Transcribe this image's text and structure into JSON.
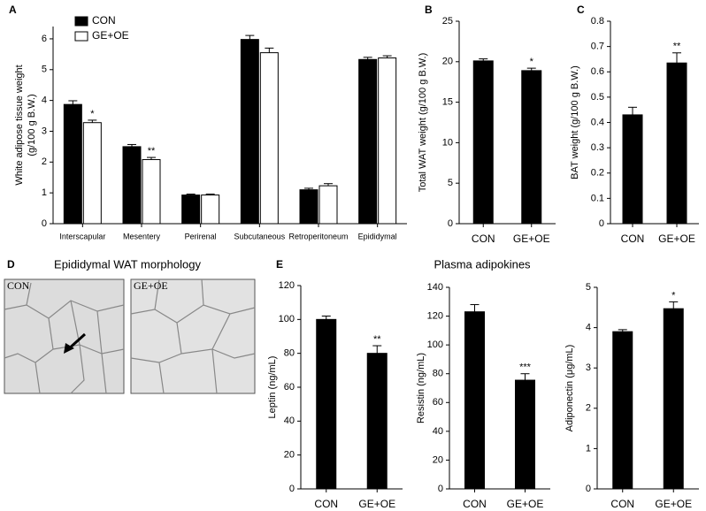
{
  "panel_labels": [
    "A",
    "B",
    "C",
    "D",
    "E"
  ],
  "morphology": {
    "title": "Epididymal WAT morphology",
    "labels": [
      "CON",
      "GE+OE"
    ]
  },
  "plasma_title": "Plasma adipokines",
  "chart_data": [
    {
      "type": "bar",
      "ylabel": [
        "White adipose tissue weight",
        "(g/100 g B.W.)"
      ],
      "categories": [
        "Interscapular",
        "Mesentery",
        "Perirenal",
        "Subcutaneous",
        "Retroperitoneum",
        "Epididymal"
      ],
      "series": [
        {
          "name": "CON",
          "color": "#000000",
          "values": [
            3.87,
            2.5,
            0.93,
            5.98,
            1.1,
            5.33
          ],
          "errors": [
            0.12,
            0.07,
            0.03,
            0.13,
            0.05,
            0.07
          ],
          "annotations": [
            null,
            null,
            null,
            null,
            null,
            null
          ]
        },
        {
          "name": "GE+OE",
          "color": "#ffffff",
          "values": [
            3.28,
            2.08,
            0.93,
            5.55,
            1.23,
            5.38
          ],
          "errors": [
            0.08,
            0.07,
            0.03,
            0.15,
            0.07,
            0.07
          ],
          "annotations": [
            "*",
            "**",
            null,
            null,
            null,
            null
          ]
        }
      ],
      "ylim": [
        0,
        6.4
      ],
      "yticks": [
        0,
        1,
        2,
        3,
        4,
        5,
        6
      ],
      "legend": "upper left"
    },
    {
      "type": "bar",
      "ylabel": [
        "Total WAT weight (g/100 g B.W.)"
      ],
      "categories": [
        "CON",
        "GE+OE"
      ],
      "values": [
        20.1,
        18.9
      ],
      "errors": [
        0.25,
        0.3
      ],
      "annotations": [
        null,
        "*"
      ],
      "color": "#000000",
      "ylim": [
        0,
        25
      ],
      "yticks": [
        0,
        5,
        10,
        15,
        20,
        25
      ]
    },
    {
      "type": "bar",
      "ylabel": [
        "BAT weight (g/100 g B.W.)"
      ],
      "categories": [
        "CON",
        "GE+OE"
      ],
      "values": [
        0.43,
        0.635
      ],
      "errors": [
        0.03,
        0.04
      ],
      "annotations": [
        null,
        "**"
      ],
      "color": "#000000",
      "ylim": [
        0,
        0.8
      ],
      "yticks": [
        0,
        0.1,
        0.2,
        0.3,
        0.4,
        0.5,
        0.6,
        0.7,
        0.8
      ]
    },
    {
      "type": "bar",
      "ylabel": [
        "Leptin (ng/mL)"
      ],
      "categories": [
        "CON",
        "GE+OE"
      ],
      "values": [
        100,
        80
      ],
      "errors": [
        2,
        4.5
      ],
      "annotations": [
        null,
        "**"
      ],
      "color": "#000000",
      "ylim": [
        0,
        120
      ],
      "yticks": [
        0,
        20,
        40,
        60,
        80,
        100,
        120
      ]
    },
    {
      "type": "bar",
      "ylabel": [
        "Resistin (ng/mL)"
      ],
      "categories": [
        "CON",
        "GE+OE"
      ],
      "values": [
        123,
        75.5
      ],
      "errors": [
        5,
        4.5
      ],
      "annotations": [
        null,
        "***"
      ],
      "color": "#000000",
      "ylim": [
        0,
        140
      ],
      "yticks": [
        0,
        20,
        40,
        60,
        80,
        100,
        120,
        140
      ]
    },
    {
      "type": "bar",
      "ylabel": [
        "Adiponectin (μg/mL)"
      ],
      "categories": [
        "CON",
        "GE+OE"
      ],
      "values": [
        3.9,
        4.47
      ],
      "errors": [
        0.05,
        0.17
      ],
      "annotations": [
        null,
        "*"
      ],
      "color": "#000000",
      "ylim": [
        0,
        5
      ],
      "yticks": [
        0,
        1,
        2,
        3,
        4,
        5
      ]
    }
  ]
}
